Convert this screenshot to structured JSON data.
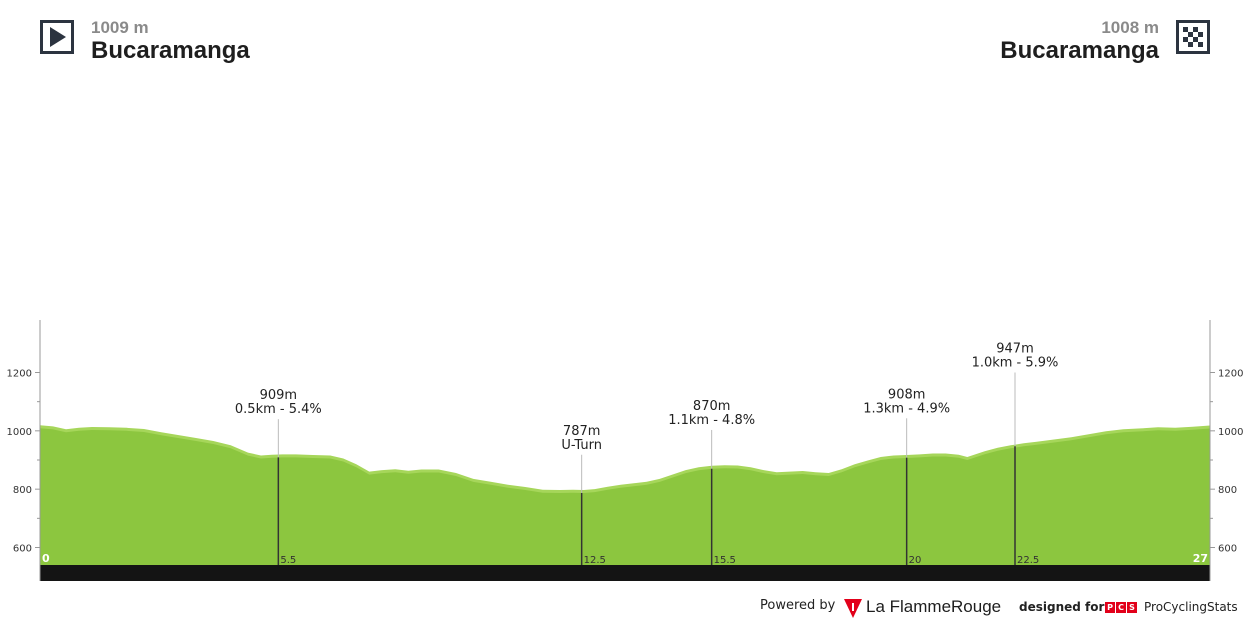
{
  "start": {
    "altitude": "1009 m",
    "name": "Bucaramanga",
    "icon": "play-icon"
  },
  "finish": {
    "altitude": "1008 m",
    "name": "Bucaramanga",
    "icon": "checkered-flag-icon"
  },
  "chart_data": {
    "type": "area",
    "xlim": [
      0,
      27
    ],
    "ylim": [
      540,
      1380
    ],
    "y_ticks": [
      600,
      800,
      1000,
      1200
    ],
    "y_tick_labels": [
      "600",
      "800",
      "1000",
      "1200"
    ],
    "x_labels": [
      {
        "x": 0,
        "label": "0"
      },
      {
        "x": 5.5,
        "label": "5.5"
      },
      {
        "x": 12.5,
        "label": "12.5"
      },
      {
        "x": 15.5,
        "label": "15.5"
      },
      {
        "x": 20,
        "label": "20"
      },
      {
        "x": 22.5,
        "label": "22.5"
      },
      {
        "x": 27,
        "label": "27"
      }
    ],
    "profile": {
      "x": [
        0,
        0.3,
        0.6,
        0.9,
        1.2,
        1.6,
        2.0,
        2.4,
        2.8,
        3.2,
        3.6,
        4.0,
        4.4,
        4.8,
        5.1,
        5.35,
        5.6,
        5.9,
        6.3,
        6.7,
        7.0,
        7.3,
        7.6,
        7.9,
        8.2,
        8.5,
        8.8,
        9.2,
        9.6,
        10.0,
        10.4,
        10.8,
        11.2,
        11.6,
        12.0,
        12.3,
        12.55,
        12.8,
        13.1,
        13.4,
        13.7,
        14.0,
        14.3,
        14.6,
        14.9,
        15.2,
        15.5,
        15.8,
        16.1,
        16.4,
        16.7,
        17.0,
        17.3,
        17.6,
        17.9,
        18.2,
        18.5,
        18.8,
        19.1,
        19.4,
        19.7,
        20.0,
        20.3,
        20.6,
        20.9,
        21.2,
        21.4,
        21.6,
        21.8,
        22.1,
        22.4,
        22.7,
        23.0,
        23.4,
        23.8,
        24.2,
        24.6,
        25.0,
        25.4,
        25.8,
        26.2,
        26.6,
        27.0
      ],
      "y": [
        1009,
        1005,
        995,
        1000,
        1003,
        1002,
        1000,
        996,
        985,
        975,
        965,
        955,
        940,
        915,
        905,
        908,
        909,
        909,
        907,
        905,
        895,
        875,
        850,
        855,
        858,
        853,
        857,
        857,
        845,
        825,
        815,
        805,
        797,
        788,
        787,
        788,
        787,
        790,
        798,
        805,
        810,
        815,
        825,
        840,
        855,
        865,
        870,
        872,
        871,
        865,
        855,
        848,
        850,
        852,
        848,
        845,
        858,
        875,
        888,
        900,
        905,
        907,
        909,
        912,
        912,
        908,
        900,
        910,
        920,
        932,
        940,
        947,
        952,
        960,
        968,
        978,
        988,
        995,
        998,
        1002,
        1000,
        1004,
        1008
      ]
    },
    "markers": [
      {
        "x": 5.5,
        "y": 909,
        "label1": "909m",
        "label2": "0.5km - 5.4%",
        "top": 1040
      },
      {
        "x": 12.5,
        "y": 787,
        "label1": "787m",
        "label2": "U-Turn",
        "top": 918
      },
      {
        "x": 15.5,
        "y": 870,
        "label1": "870m",
        "label2": "1.1km - 4.8%",
        "top": 1003
      },
      {
        "x": 20,
        "y": 908,
        "label1": "908m",
        "label2": "1.3km - 4.9%",
        "top": 1043
      },
      {
        "x": 22.5,
        "y": 947,
        "label1": "947m",
        "label2": "1.0km - 5.9%",
        "top": 1200
      }
    ],
    "colors": {
      "fill": "#8cc63f",
      "fill_light": "#a6d65a",
      "base": "#141414",
      "axis": "#999999",
      "marker": "#333333"
    }
  },
  "footer": {
    "powered_by": "Powered by",
    "lfr_name": "La FlammeRouge",
    "designed_for": "designed for",
    "pcs_letters": [
      "P",
      "C",
      "S"
    ],
    "pcs_name": "ProCyclingStats"
  }
}
